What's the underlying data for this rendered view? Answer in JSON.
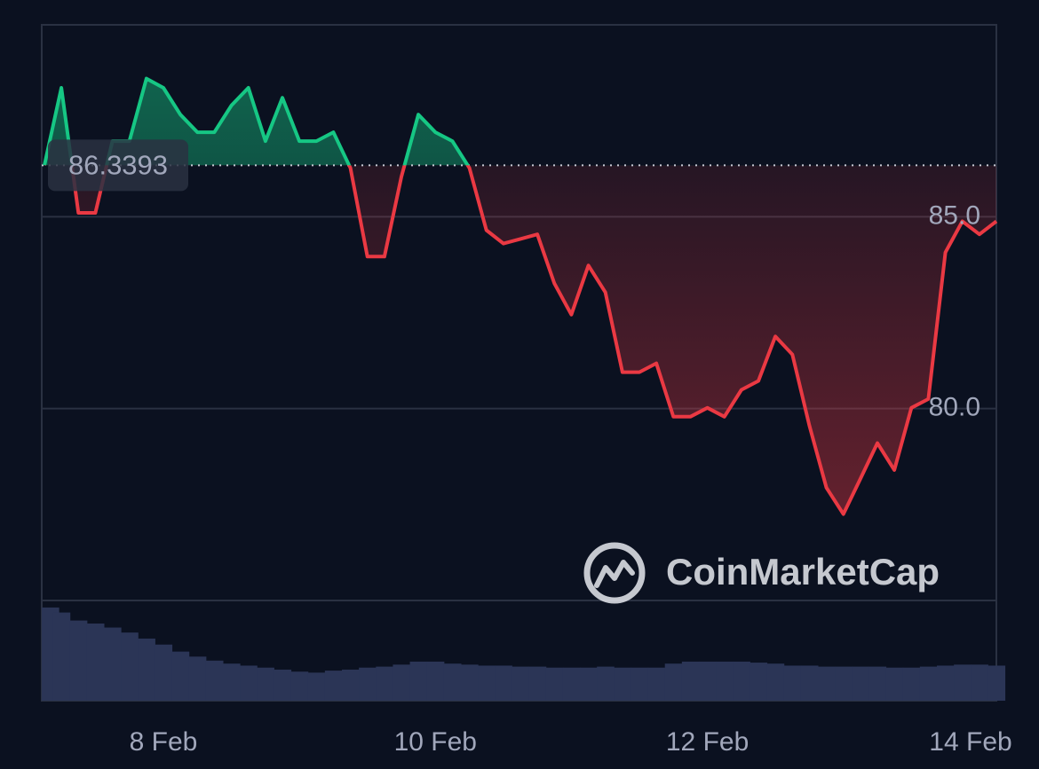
{
  "chart_data": {
    "type": "line",
    "categories": [
      null,
      null,
      null,
      null,
      null,
      null,
      null,
      "8 Feb",
      null,
      null,
      null,
      null,
      null,
      null,
      null,
      null,
      null,
      null,
      null,
      null,
      null,
      null,
      null,
      "10 Feb",
      null,
      null,
      null,
      null,
      null,
      null,
      null,
      null,
      null,
      null,
      null,
      null,
      null,
      null,
      null,
      "12 Feb",
      null,
      null,
      null,
      null,
      null,
      null,
      null,
      null,
      null,
      null,
      null,
      null,
      null,
      null,
      null,
      "14 Feb",
      null
    ],
    "values": [
      86.34,
      88.36,
      85.1,
      85.1,
      86.97,
      86.97,
      88.6,
      88.36,
      87.66,
      87.2,
      87.2,
      87.9,
      88.36,
      86.97,
      88.1,
      86.97,
      86.97,
      87.2,
      86.27,
      83.96,
      83.96,
      86.04,
      87.66,
      87.2,
      86.97,
      86.27,
      84.65,
      84.3,
      84.42,
      84.54,
      83.26,
      82.45,
      83.73,
      83.03,
      80.95,
      80.95,
      81.18,
      79.79,
      79.79,
      80.02,
      79.79,
      80.49,
      80.72,
      81.88,
      81.41,
      79.56,
      77.94,
      77.25,
      78.17,
      79.1,
      78.4,
      80.02,
      80.25,
      84.07,
      84.88,
      84.54,
      84.88
    ],
    "baseline": 86.3393,
    "up_color": "#16c784",
    "down_color": "#ea3943",
    "ylim": [
      75,
      90
    ],
    "yticks": [
      {
        "value": 85,
        "label": "85.0"
      },
      {
        "value": 80,
        "label": "80.0"
      }
    ],
    "grid": true,
    "volume": [
      93,
      88,
      80,
      77,
      73,
      68,
      62,
      56,
      49,
      44,
      40,
      37,
      35,
      33,
      31,
      29,
      28,
      30,
      31,
      33,
      34,
      36,
      39,
      39,
      37,
      36,
      35,
      35,
      34,
      34,
      33,
      33,
      33,
      34,
      33,
      33,
      33,
      37,
      39,
      39,
      39,
      39,
      38,
      37,
      35,
      35,
      34,
      34,
      34,
      34,
      33,
      33,
      34,
      35,
      36,
      36,
      35
    ],
    "volume_lim": [
      0,
      100
    ],
    "volume_color": "#2b3556",
    "watermark": "CoinMarketCap"
  }
}
